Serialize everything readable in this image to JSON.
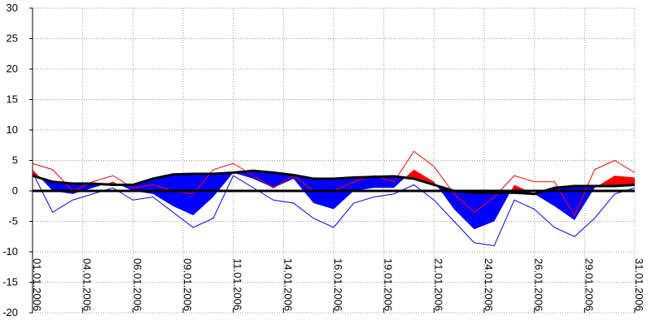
{
  "chart_data": {
    "type": "temperature-band",
    "x": [
      1,
      2,
      3,
      4,
      5,
      6,
      7,
      8,
      9,
      10,
      11,
      12,
      13,
      14,
      15,
      16,
      17,
      18,
      19,
      20,
      21,
      22,
      23,
      24,
      25,
      26,
      27,
      28,
      29,
      30,
      31
    ],
    "series": [
      {
        "color": "#000000",
        "values": [
          2.5,
          1.5,
          1.2,
          1.2,
          1,
          1,
          2,
          2.7,
          2.8,
          2.8,
          3,
          3.3,
          3,
          2.6,
          2,
          2,
          2.2,
          2.3,
          2.4,
          2,
          1,
          0,
          -0.3,
          -0.3,
          -0.3,
          -0.5,
          0.5,
          0.8,
          0.8,
          0.8,
          1
        ]
      },
      {
        "color_above": "#ff0000",
        "color_below": "#0000ff",
        "values": [
          3.5,
          0,
          -0.5,
          0.5,
          1.5,
          0,
          -0.5,
          -2.5,
          -4,
          -1,
          3,
          2,
          0.5,
          2,
          -2,
          -3,
          0,
          0.5,
          0.5,
          3.5,
          1.5,
          -3,
          -6.3,
          -5,
          1,
          -0.5,
          -2.5,
          -4.8,
          0.5,
          2.5,
          2.2
        ]
      },
      {
        "color": "#ff0000",
        "values": [
          4.5,
          3.5,
          0,
          1.5,
          2.5,
          0.5,
          1,
          0,
          -0.5,
          3.5,
          4.5,
          2.5,
          0.5,
          2.5,
          0,
          0,
          1.5,
          2.5,
          1.5,
          6.5,
          4,
          -0.5,
          -3.5,
          -1,
          2.5,
          1.5,
          1.5,
          -4,
          3.5,
          5,
          3
        ]
      },
      {
        "color": "#0000ff",
        "values": [
          3,
          -3.5,
          -1.5,
          -0.5,
          0.5,
          -1.5,
          -1,
          -3.5,
          -6,
          -4.5,
          2.5,
          0.5,
          -1.5,
          -2,
          -4.5,
          -6,
          -2,
          -1,
          -0.5,
          1,
          -1.5,
          -5,
          -8.5,
          -9,
          -1.5,
          -3,
          -6,
          -7.5,
          -4.5,
          -0.5,
          0.5
        ]
      }
    ],
    "xlim": [
      1,
      31
    ],
    "xticks": [
      {
        "value": 1,
        "label": "01.01.2006"
      },
      {
        "value": 3.5,
        "label": "04.01.2006"
      },
      {
        "value": 6,
        "label": "06.01.2006"
      },
      {
        "value": 8.5,
        "label": "09.01.2006"
      },
      {
        "value": 11,
        "label": "11.01.2006"
      },
      {
        "value": 13.5,
        "label": "14.01.2006"
      },
      {
        "value": 16,
        "label": "16.01.2006"
      },
      {
        "value": 18.5,
        "label": "19.01.2006"
      },
      {
        "value": 21,
        "label": "21.01.2006"
      },
      {
        "value": 23.5,
        "label": "24.01.2006"
      },
      {
        "value": 26,
        "label": "26.01.2006"
      },
      {
        "value": 28.5,
        "label": "29.01.2006"
      },
      {
        "value": 31,
        "label": "31.01.2006"
      }
    ],
    "ylim": [
      -20,
      30
    ],
    "yticks": [
      -20,
      -15,
      -10,
      -5,
      0,
      5,
      10,
      15,
      20,
      25,
      30
    ],
    "grid": true,
    "zero_line": true
  }
}
